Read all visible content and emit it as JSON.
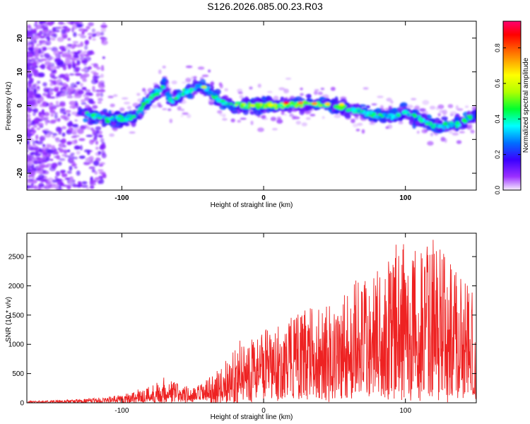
{
  "figure": {
    "title": "S126.2026.085.00.23.R03"
  },
  "chart_data": [
    {
      "type": "heatmap",
      "title": "",
      "xlabel": "Height of straight line (km)",
      "ylabel": "Frequency (Hz)",
      "xlim": [
        -167,
        150
      ],
      "ylim": [
        -25,
        25
      ],
      "x_ticks": [
        -100,
        0,
        100
      ],
      "y_ticks": [
        -20,
        -10,
        0,
        10,
        20
      ],
      "colorbar": {
        "label": "Normalized spectral amplitude",
        "range": [
          0,
          0.95
        ],
        "ticks": [
          0.0,
          0.2,
          0.4,
          0.6,
          0.8
        ],
        "colormap": [
          "#f7eeff",
          "#9b30ff",
          "#3a00ff",
          "#0070ff",
          "#00ffff",
          "#00ff30",
          "#b0ff00",
          "#ffff00",
          "#ff8000",
          "#ff0000",
          "#ff0070"
        ]
      },
      "ridge": {
        "x": [
          -165,
          -140,
          -120,
          -110,
          -100,
          -90,
          -85,
          -80,
          -75,
          -70,
          -65,
          -60,
          -55,
          -50,
          -45,
          -40,
          -35,
          -30,
          -20,
          -10,
          0,
          10,
          20,
          30,
          40,
          50,
          60,
          70,
          80,
          90,
          100,
          110,
          120,
          130,
          140,
          148
        ],
        "frequency_hz": [
          0,
          0,
          -3,
          -4,
          -4,
          -3,
          0,
          2,
          4,
          6,
          1,
          3,
          4,
          5,
          6,
          5,
          3,
          1,
          0,
          0,
          0,
          0,
          0.5,
          0.5,
          0.5,
          0,
          -1,
          -2,
          -3,
          -3,
          -2,
          -4,
          -6,
          -6,
          -5,
          -3
        ]
      }
    },
    {
      "type": "line",
      "title": "",
      "xlabel": "Height of straight line (km)",
      "ylabel": "SNR (10 * v/v)",
      "xlim": [
        -167,
        150
      ],
      "ylim": [
        0,
        2900
      ],
      "x_ticks": [
        -100,
        0,
        100
      ],
      "y_ticks": [
        0,
        500,
        1000,
        1500,
        2000,
        2500
      ],
      "series": [
        {
          "name": "SNR",
          "color": "#ee2222",
          "envelope_x": [
            -167,
            -130,
            -110,
            -100,
            -90,
            -80,
            -70,
            -60,
            -50,
            -40,
            -30,
            -20,
            -10,
            0,
            10,
            20,
            30,
            40,
            50,
            60,
            70,
            80,
            90,
            95,
            100,
            110,
            120,
            130,
            140,
            150
          ],
          "envelope_max": [
            30,
            60,
            100,
            150,
            220,
            300,
            450,
            350,
            250,
            400,
            600,
            1000,
            1200,
            1250,
            1300,
            1500,
            1600,
            1700,
            1800,
            2000,
            2200,
            2300,
            2500,
            2900,
            2700,
            2600,
            2800,
            2500,
            2300,
            1900
          ]
        }
      ]
    }
  ]
}
